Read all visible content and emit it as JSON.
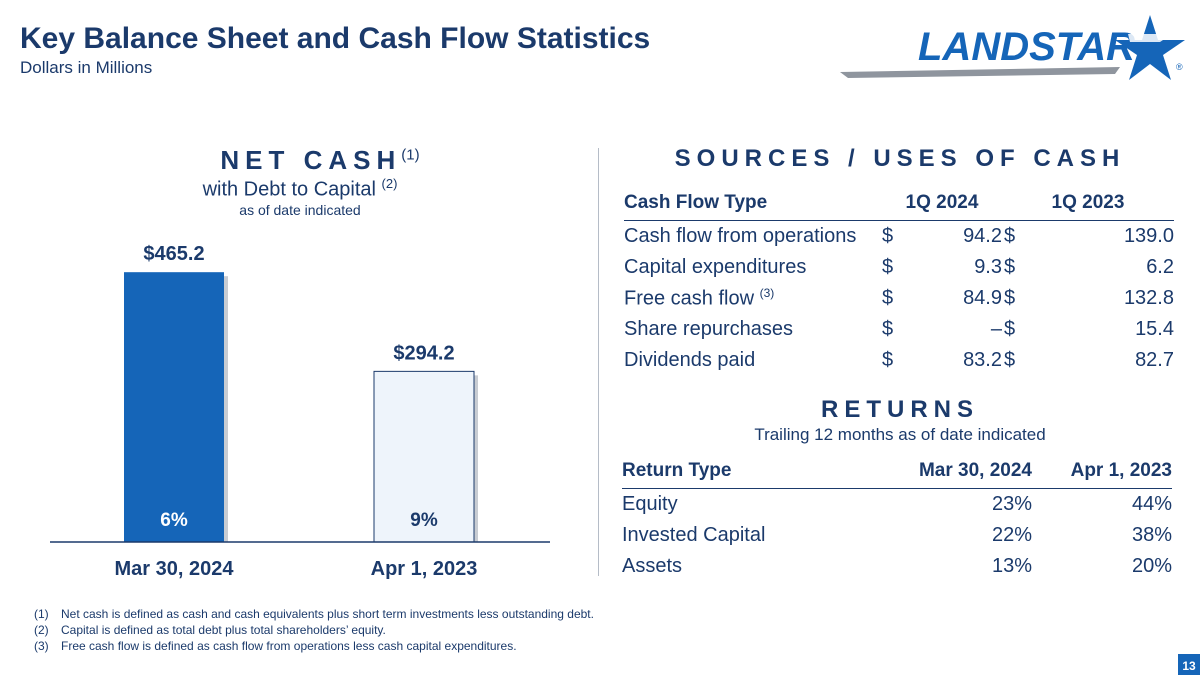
{
  "header": {
    "title": "Key Balance Sheet and Cash Flow Statistics",
    "subtitle": "Dollars in Millions",
    "logo_text": "LANDSTAR",
    "registered_mark": "®"
  },
  "net_cash": {
    "title": "NET CASH",
    "title_note": "(1)",
    "subtitle": "with Debt to Capital",
    "subtitle_note": "(2)",
    "as_of": "as of date indicated"
  },
  "chart_data": {
    "type": "bar",
    "categories": [
      "Mar 30, 2024",
      "Apr 1, 2023"
    ],
    "values": [
      465.2,
      294.2
    ],
    "value_labels": [
      "$465.2",
      "$294.2"
    ],
    "debt_to_capital": [
      "6%",
      "9%"
    ],
    "bar_colors": [
      "#1565b8",
      "#eef4fb"
    ],
    "ylim": [
      0,
      500
    ],
    "grid": false
  },
  "sources_uses": {
    "title": "SOURCES / USES OF CASH",
    "headers": [
      "Cash Flow Type",
      "1Q 2024",
      "1Q 2023"
    ],
    "rows": [
      {
        "label": "Cash flow from operations",
        "note": "",
        "cur1": "$",
        "v1": "94.2",
        "cur2": "$",
        "v2": "139.0"
      },
      {
        "label": "Capital expenditures",
        "note": "",
        "cur1": "$",
        "v1": "9.3",
        "cur2": "$",
        "v2": "6.2"
      },
      {
        "label": "Free cash flow",
        "note": "(3)",
        "cur1": "$",
        "v1": "84.9",
        "cur2": "$",
        "v2": "132.8"
      },
      {
        "label": "Share repurchases",
        "note": "",
        "cur1": "$",
        "v1": "–",
        "cur2": "$",
        "v2": "15.4"
      },
      {
        "label": "Dividends paid",
        "note": "",
        "cur1": "$",
        "v1": "83.2",
        "cur2": "$",
        "v2": "82.7"
      }
    ]
  },
  "returns": {
    "title": "RETURNS",
    "subtitle": "Trailing 12 months as of date indicated",
    "headers": [
      "Return Type",
      "Mar 30, 2024",
      "Apr 1, 2023"
    ],
    "rows": [
      {
        "label": "Equity",
        "v1": "23%",
        "v2": "44%"
      },
      {
        "label": "Invested Capital",
        "v1": "22%",
        "v2": "38%"
      },
      {
        "label": "Assets",
        "v1": "13%",
        "v2": "20%"
      }
    ]
  },
  "footnotes": [
    {
      "num": "(1)",
      "text": "Net cash is defined as cash and cash equivalents plus short term investments less outstanding debt."
    },
    {
      "num": "(2)",
      "text": "Capital is defined as total debt plus total shareholders’ equity."
    },
    {
      "num": "(3)",
      "text": "Free cash flow is defined as cash flow from operations less cash capital expenditures."
    }
  ],
  "page_number": "13",
  "colors": {
    "navy": "#1b3a6b",
    "brand_blue": "#1565b8",
    "light_bar": "#eef4fb"
  }
}
